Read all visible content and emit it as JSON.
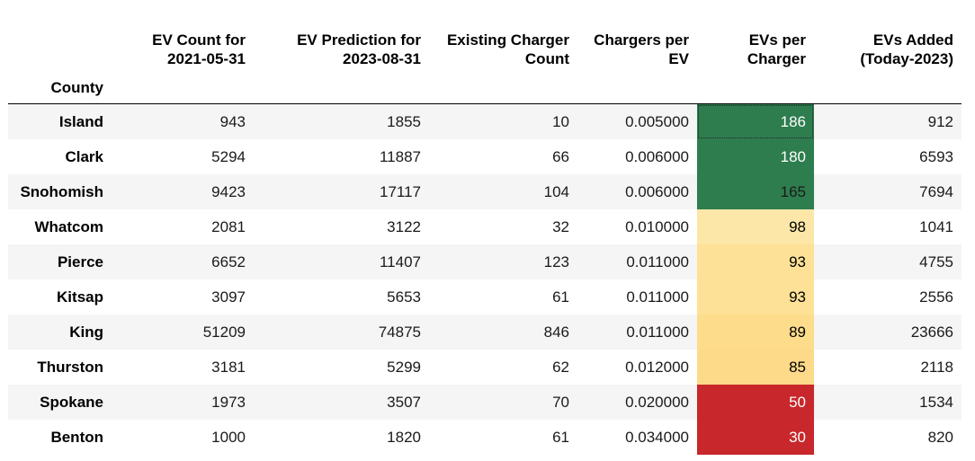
{
  "table": {
    "columns": [
      {
        "line1": "",
        "line2": ""
      },
      {
        "line1": "EV Count for",
        "line2": "2021-05-31"
      },
      {
        "line1": "EV Prediction for",
        "line2": "2023-08-31"
      },
      {
        "line1": "Existing Charger",
        "line2": "Count"
      },
      {
        "line1": "Chargers per",
        "line2": "EV"
      },
      {
        "line1": "EVs per",
        "line2": "Charger"
      },
      {
        "line1": "EVs Added",
        "line2": "(Today-2023)"
      }
    ],
    "index_name": "County",
    "rows": [
      {
        "county": "Island",
        "ev_count": "943",
        "ev_prediction": "1855",
        "charger_count": "10",
        "chargers_per_ev": "0.005000",
        "evs_per_charger": "186",
        "evs_added": "912",
        "heat_color": "#2e7d4f",
        "heat_text": "#ffffff"
      },
      {
        "county": "Clark",
        "ev_count": "5294",
        "ev_prediction": "11887",
        "charger_count": "66",
        "chargers_per_ev": "0.006000",
        "evs_per_charger": "180",
        "evs_added": "6593",
        "heat_color": "#2e7d4f",
        "heat_text": "#ffffff"
      },
      {
        "county": "Snohomish",
        "ev_count": "9423",
        "ev_prediction": "17117",
        "charger_count": "104",
        "chargers_per_ev": "0.006000",
        "evs_per_charger": "165",
        "evs_added": "7694",
        "heat_color": "#2e7d4f",
        "heat_text": "#1a1a1a"
      },
      {
        "county": "Whatcom",
        "ev_count": "2081",
        "ev_prediction": "3122",
        "charger_count": "32",
        "chargers_per_ev": "0.010000",
        "evs_per_charger": "98",
        "evs_added": "1041",
        "heat_color": "#fce7a8",
        "heat_text": "#000000"
      },
      {
        "county": "Pierce",
        "ev_count": "6652",
        "ev_prediction": "11407",
        "charger_count": "123",
        "chargers_per_ev": "0.011000",
        "evs_per_charger": "93",
        "evs_added": "4755",
        "heat_color": "#fde196",
        "heat_text": "#000000"
      },
      {
        "county": "Kitsap",
        "ev_count": "3097",
        "ev_prediction": "5653",
        "charger_count": "61",
        "chargers_per_ev": "0.011000",
        "evs_per_charger": "93",
        "evs_added": "2556",
        "heat_color": "#fde196",
        "heat_text": "#000000"
      },
      {
        "county": "King",
        "ev_count": "51209",
        "ev_prediction": "74875",
        "charger_count": "846",
        "chargers_per_ev": "0.011000",
        "evs_per_charger": "89",
        "evs_added": "23666",
        "heat_color": "#fddc8c",
        "heat_text": "#000000"
      },
      {
        "county": "Thurston",
        "ev_count": "3181",
        "ev_prediction": "5299",
        "charger_count": "62",
        "chargers_per_ev": "0.012000",
        "evs_per_charger": "85",
        "evs_added": "2118",
        "heat_color": "#fdd98a",
        "heat_text": "#000000"
      },
      {
        "county": "Spokane",
        "ev_count": "1973",
        "ev_prediction": "3507",
        "charger_count": "70",
        "chargers_per_ev": "0.020000",
        "evs_per_charger": "50",
        "evs_added": "1534",
        "heat_color": "#c8272b",
        "heat_text": "#ffffff"
      },
      {
        "county": "Benton",
        "ev_count": "1000",
        "ev_prediction": "1820",
        "charger_count": "61",
        "chargers_per_ev": "0.034000",
        "evs_per_charger": "30",
        "evs_added": "820",
        "heat_color": "#c8272b",
        "heat_text": "#ffffff"
      }
    ]
  }
}
